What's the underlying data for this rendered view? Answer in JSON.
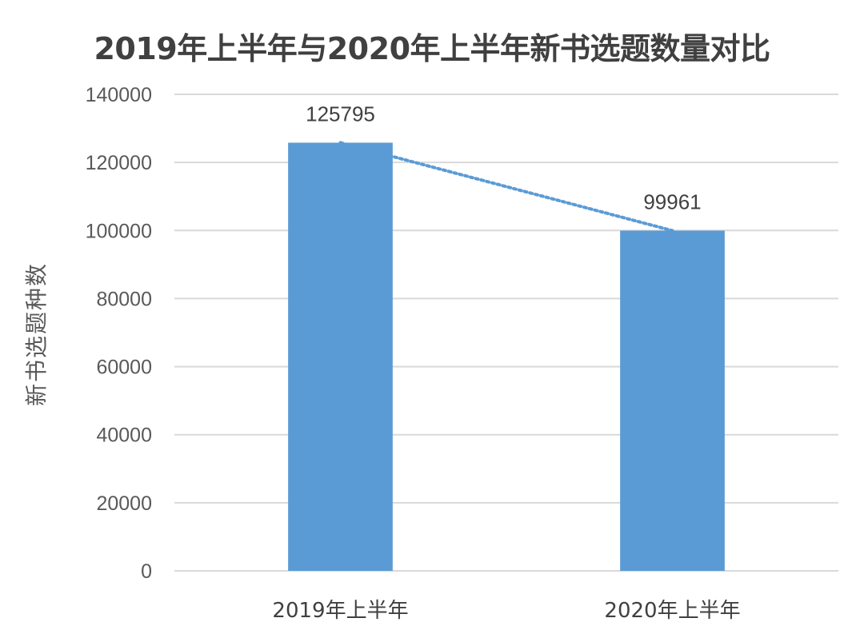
{
  "chart_data": {
    "type": "bar",
    "title": "2019年上半年与2020年上半年新书选题数量对比",
    "xlabel": "",
    "ylabel": "新书选题种数",
    "categories": [
      "2019年上半年",
      "2020年上半年"
    ],
    "values": [
      125795,
      99961
    ],
    "data_labels": [
      "125795",
      "99961"
    ],
    "ylim": [
      0,
      140000
    ],
    "yticks": [
      0,
      20000,
      40000,
      60000,
      80000,
      100000,
      120000,
      140000
    ],
    "ytick_labels": [
      "0",
      "20000",
      "40000",
      "60000",
      "80000",
      "100000",
      "120000",
      "140000"
    ],
    "grid": true,
    "trendline": {
      "style": "dotted",
      "connects": "bar-tops"
    },
    "colors": {
      "bar": "#5B9BD5",
      "trendline": "#5B9BD5",
      "grid": "#D9D9D9",
      "title": "#404040",
      "text": "#595959"
    }
  }
}
